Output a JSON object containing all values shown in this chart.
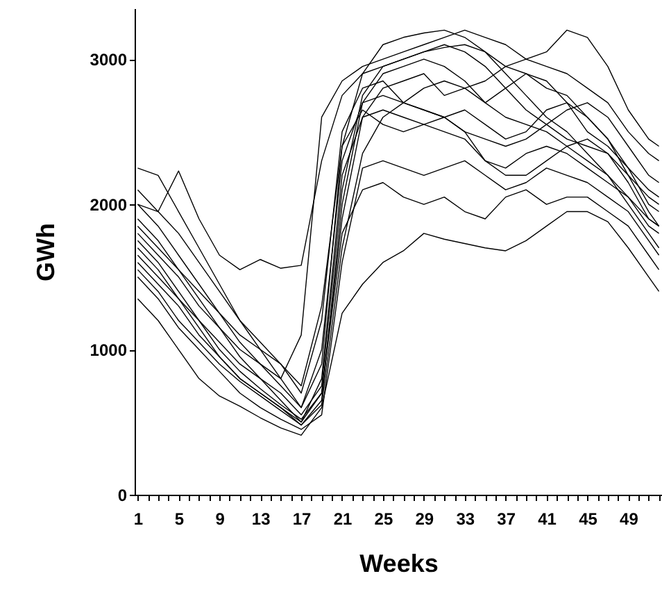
{
  "chart_data": {
    "type": "line",
    "xlabel": "Weeks",
    "ylabel": "GWh",
    "xlim": [
      0.7,
      52.3
    ],
    "ylim": [
      0,
      3350
    ],
    "yticks": [
      0,
      1000,
      2000,
      3000
    ],
    "xticks": [
      1,
      {
        "value": 2,
        "label": null
      },
      {
        "value": 3,
        "label": null
      },
      {
        "value": 4,
        "label": null
      },
      5,
      {
        "value": 6,
        "label": null
      },
      {
        "value": 7,
        "label": null
      },
      {
        "value": 8,
        "label": null
      },
      9,
      {
        "value": 10,
        "label": null
      },
      {
        "value": 11,
        "label": null
      },
      {
        "value": 12,
        "label": null
      },
      13,
      {
        "value": 14,
        "label": null
      },
      {
        "value": 15,
        "label": null
      },
      {
        "value": 16,
        "label": null
      },
      17,
      {
        "value": 18,
        "label": null
      },
      {
        "value": 19,
        "label": null
      },
      {
        "value": 20,
        "label": null
      },
      21,
      {
        "value": 22,
        "label": null
      },
      {
        "value": 23,
        "label": null
      },
      {
        "value": 24,
        "label": null
      },
      25,
      {
        "value": 26,
        "label": null
      },
      {
        "value": 27,
        "label": null
      },
      {
        "value": 28,
        "label": null
      },
      29,
      {
        "value": 30,
        "label": null
      },
      {
        "value": 31,
        "label": null
      },
      {
        "value": 32,
        "label": null
      },
      33,
      {
        "value": 34,
        "label": null
      },
      {
        "value": 35,
        "label": null
      },
      {
        "value": 36,
        "label": null
      },
      37,
      {
        "value": 38,
        "label": null
      },
      {
        "value": 39,
        "label": null
      },
      {
        "value": 40,
        "label": null
      },
      41,
      {
        "value": 42,
        "label": null
      },
      {
        "value": 43,
        "label": null
      },
      {
        "value": 44,
        "label": null
      },
      45,
      {
        "value": 46,
        "label": null
      },
      {
        "value": 47,
        "label": null
      },
      {
        "value": 48,
        "label": null
      },
      49,
      {
        "value": 50,
        "label": null
      },
      {
        "value": 51,
        "label": null
      },
      {
        "value": 52,
        "label": null
      }
    ],
    "grid": false,
    "marker": "none",
    "line_style": "solid",
    "x": [
      1,
      3,
      5,
      7,
      9,
      11,
      13,
      15,
      17,
      19,
      21,
      23,
      25,
      27,
      29,
      31,
      33,
      35,
      37,
      39,
      41,
      43,
      45,
      47,
      49,
      51,
      52
    ],
    "series": [
      {
        "color": "#000000",
        "values": [
          1350,
          1200,
          1000,
          800,
          680,
          610,
          530,
          460,
          410,
          600,
          1250,
          1450,
          1600,
          1680,
          1800,
          1760,
          1730,
          1700,
          1680,
          1750,
          1850,
          1950,
          1950,
          1880,
          1700,
          1500,
          1400
        ]
      },
      {
        "color": "#000000",
        "values": [
          2000,
          1950,
          2230,
          1900,
          1650,
          1550,
          1620,
          1560,
          1580,
          2300,
          2750,
          2900,
          2950,
          3000,
          3050,
          3080,
          3100,
          3050,
          2950,
          2900,
          2800,
          2750,
          2600,
          2450,
          2250,
          2100,
          2050
        ]
      },
      {
        "color": "#000000",
        "values": [
          1800,
          1650,
          1500,
          1300,
          1150,
          1000,
          900,
          800,
          1100,
          2600,
          2850,
          2950,
          3000,
          3050,
          3100,
          3150,
          3200,
          3150,
          3100,
          3000,
          2950,
          2900,
          2800,
          2700,
          2500,
          2350,
          2300
        ]
      },
      {
        "color": "#000000",
        "values": [
          1700,
          1550,
          1350,
          1150,
          950,
          800,
          700,
          600,
          500,
          700,
          1900,
          2600,
          2800,
          2850,
          2900,
          2750,
          2800,
          2850,
          2950,
          3000,
          3050,
          3200,
          3150,
          2950,
          2650,
          2450,
          2400
        ]
      },
      {
        "color": "#000000",
        "values": [
          2250,
          2200,
          1950,
          1700,
          1450,
          1200,
          1000,
          800,
          600,
          900,
          2400,
          2900,
          3100,
          3150,
          3180,
          3200,
          3150,
          3050,
          2900,
          2750,
          2600,
          2500,
          2350,
          2200,
          2050,
          1900,
          1850
        ]
      },
      {
        "color": "#000000",
        "values": [
          1600,
          1450,
          1300,
          1100,
          950,
          800,
          700,
          600,
          480,
          650,
          2000,
          2700,
          2900,
          2950,
          3000,
          2950,
          2850,
          2700,
          2600,
          2550,
          2500,
          2400,
          2300,
          2200,
          2000,
          1800,
          1700
        ]
      },
      {
        "color": "#000000",
        "values": [
          1900,
          1750,
          1550,
          1350,
          1150,
          950,
          800,
          650,
          500,
          800,
          2200,
          2600,
          2650,
          2600,
          2550,
          2500,
          2450,
          2300,
          2250,
          2350,
          2400,
          2350,
          2250,
          2150,
          2050,
          1850,
          1800
        ]
      },
      {
        "color": "#000000",
        "values": [
          1500,
          1350,
          1150,
          1000,
          850,
          700,
          600,
          520,
          450,
          550,
          1600,
          2250,
          2300,
          2250,
          2200,
          2250,
          2300,
          2200,
          2100,
          2150,
          2250,
          2200,
          2150,
          2050,
          1950,
          1750,
          1650
        ]
      },
      {
        "color": "#000000",
        "values": [
          2100,
          1950,
          1800,
          1600,
          1400,
          1200,
          1050,
          900,
          700,
          1200,
          2500,
          2800,
          2850,
          2700,
          2650,
          2600,
          2500,
          2450,
          2400,
          2450,
          2550,
          2650,
          2700,
          2600,
          2400,
          2200,
          2150
        ]
      },
      {
        "color": "#000000",
        "values": [
          1750,
          1600,
          1400,
          1200,
          1000,
          850,
          730,
          620,
          520,
          700,
          1800,
          2100,
          2150,
          2050,
          2000,
          2050,
          1950,
          1900,
          2050,
          2100,
          2000,
          2050,
          2050,
          1950,
          1850,
          1650,
          1550
        ]
      },
      {
        "color": "#000000",
        "values": [
          2000,
          1850,
          1650,
          1450,
          1250,
          1050,
          900,
          750,
          600,
          1000,
          2300,
          2700,
          2750,
          2700,
          2800,
          2850,
          2800,
          2700,
          2800,
          2900,
          2850,
          2700,
          2500,
          2400,
          2250,
          2000,
          1950
        ]
      },
      {
        "color": "#000000",
        "values": [
          1650,
          1500,
          1350,
          1200,
          1050,
          900,
          800,
          700,
          550,
          750,
          2100,
          2750,
          2950,
          3000,
          3050,
          3100,
          3050,
          2950,
          2800,
          2650,
          2550,
          2450,
          2400,
          2350,
          2200,
          2050,
          2000
        ]
      },
      {
        "color": "#000000",
        "values": [
          1850,
          1700,
          1550,
          1400,
          1250,
          1100,
          1000,
          900,
          750,
          1300,
          2400,
          2650,
          2550,
          2500,
          2550,
          2600,
          2500,
          2300,
          2200,
          2200,
          2300,
          2400,
          2450,
          2350,
          2150,
          1900,
          1850
        ]
      },
      {
        "color": "#000000",
        "values": [
          1550,
          1400,
          1200,
          1050,
          900,
          780,
          680,
          580,
          480,
          620,
          1700,
          2350,
          2600,
          2700,
          2650,
          2600,
          2650,
          2550,
          2450,
          2500,
          2650,
          2700,
          2600,
          2450,
          2200,
          1950,
          1850
        ]
      }
    ]
  }
}
